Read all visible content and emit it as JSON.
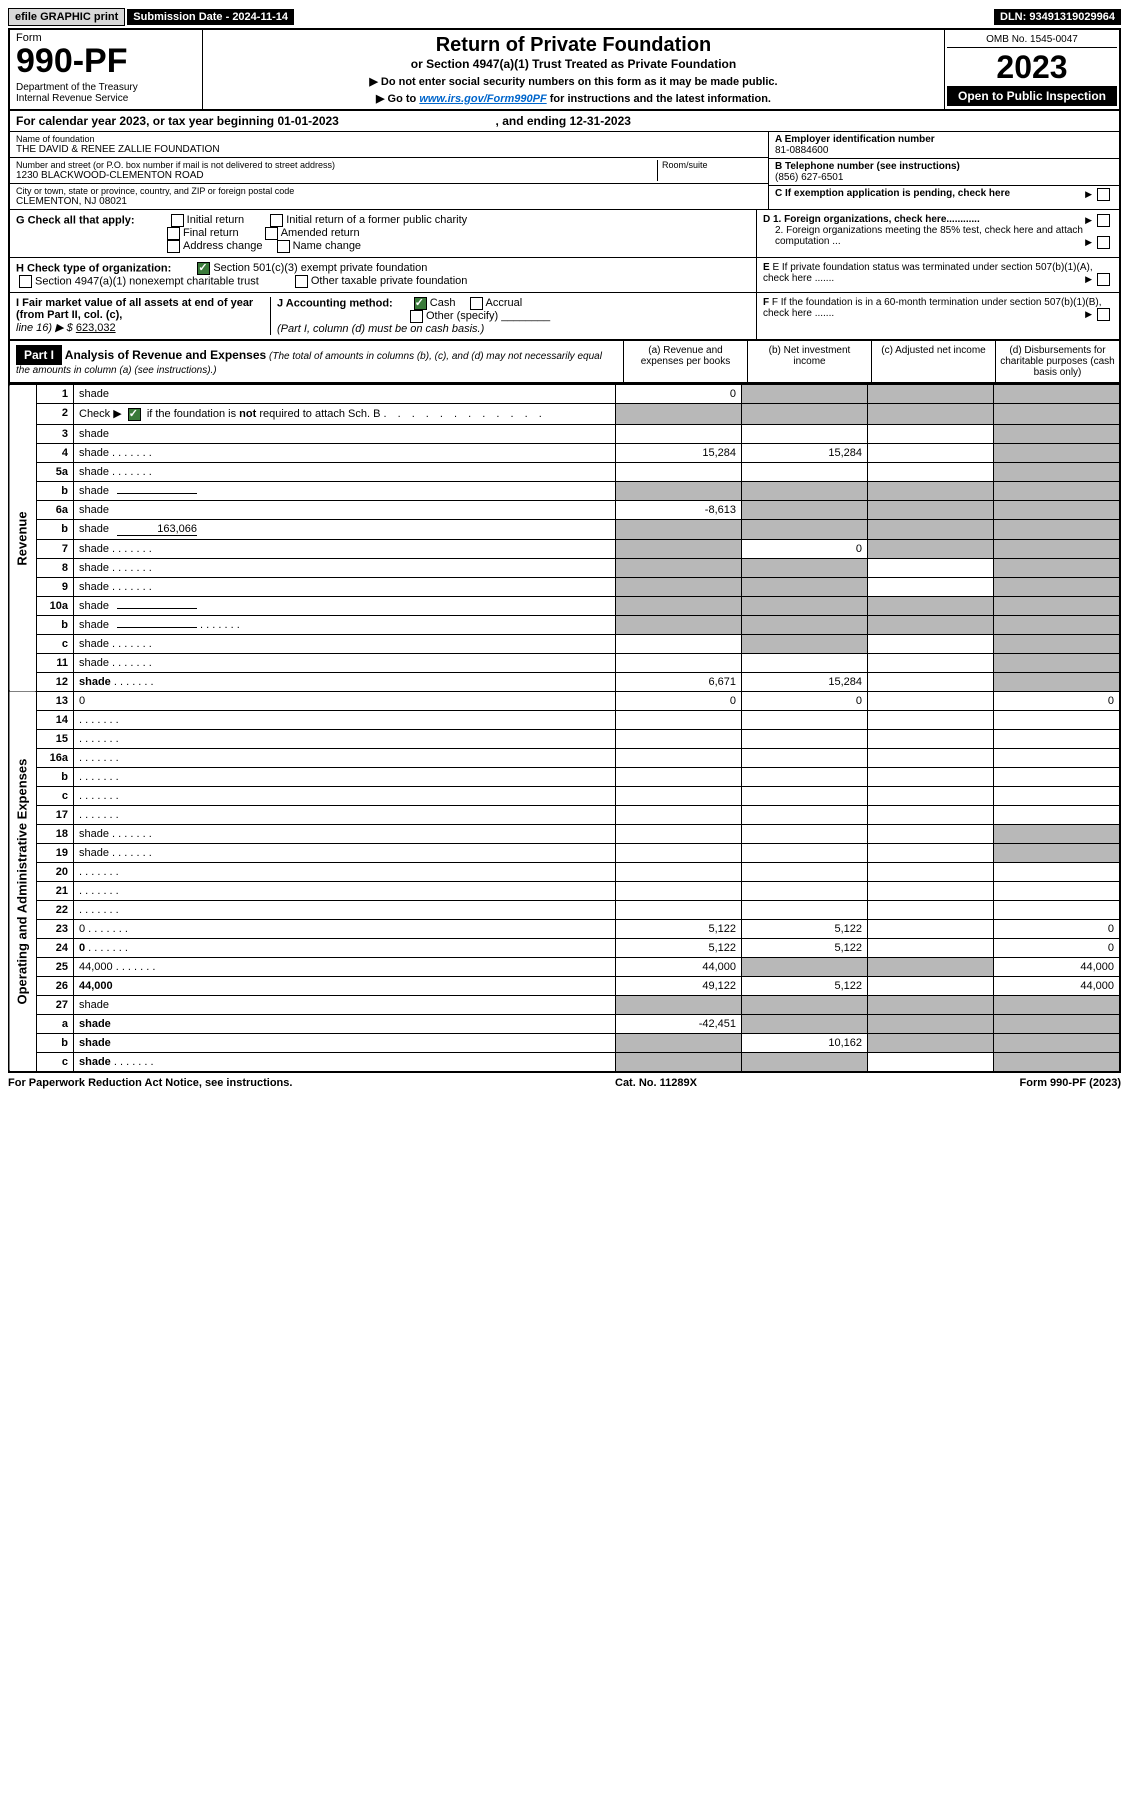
{
  "topbar": {
    "efile": "efile GRAPHIC print",
    "subdate_label": "Submission Date - 2024-11-14",
    "dln": "DLN: 93491319029964"
  },
  "header": {
    "form_label": "Form",
    "form_num": "990-PF",
    "dept": "Department of the Treasury\nInternal Revenue Service",
    "title": "Return of Private Foundation",
    "sub1": "or Section 4947(a)(1) Trust Treated as Private Foundation",
    "sub2a": "▶ Do not enter social security numbers on this form as it may be made public.",
    "sub2b_pre": "▶ Go to ",
    "sub2b_link": "www.irs.gov/Form990PF",
    "sub2b_post": " for instructions and the latest information.",
    "omb": "OMB No. 1545-0047",
    "year": "2023",
    "inspect": "Open to Public Inspection"
  },
  "calyear": {
    "pre": "For calendar year 2023, or tax year beginning ",
    "begin": "01-01-2023",
    "mid": " , and ending ",
    "end": "12-31-2023"
  },
  "entity": {
    "name_label": "Name of foundation",
    "name": "THE DAVID & RENEE ZALLIE FOUNDATION",
    "addr_label": "Number and street (or P.O. box number if mail is not delivered to street address)",
    "addr": "1230 BLACKWOOD-CLEMENTON ROAD",
    "room_label": "Room/suite",
    "city_label": "City or town, state or province, country, and ZIP or foreign postal code",
    "city": "CLEMENTON, NJ  08021",
    "ein_label": "A Employer identification number",
    "ein": "81-0884600",
    "phone_label": "B Telephone number (see instructions)",
    "phone": "(856) 627-6501",
    "c_label": "C If exemption application is pending, check here"
  },
  "g": {
    "label": "G Check all that apply:",
    "opts": [
      "Initial return",
      "Initial return of a former public charity",
      "Final return",
      "Amended return",
      "Address change",
      "Name change"
    ]
  },
  "d": {
    "d1": "D 1. Foreign organizations, check here............",
    "d2": "2. Foreign organizations meeting the 85% test, check here and attach computation ..."
  },
  "h": {
    "label": "H Check type of organization:",
    "opt1": "Section 501(c)(3) exempt private foundation",
    "opt2": "Section 4947(a)(1) nonexempt charitable trust",
    "opt3": "Other taxable private foundation"
  },
  "e": {
    "text": "E If private foundation status was terminated under section 507(b)(1)(A), check here ......."
  },
  "i": {
    "label": "I Fair market value of all assets at end of year (from Part II, col. (c),",
    "line": "line 16) ▶ $",
    "val": "623,032"
  },
  "j": {
    "label": "J Accounting method:",
    "cash": "Cash",
    "accrual": "Accrual",
    "other": "Other (specify)",
    "note": "(Part I, column (d) must be on cash basis.)"
  },
  "f": {
    "text": "F If the foundation is in a 60-month termination under section 507(b)(1)(B), check here ......."
  },
  "part1": {
    "label": "Part I",
    "title": "Analysis of Revenue and Expenses",
    "note": "(The total of amounts in columns (b), (c), and (d) may not necessarily equal the amounts in column (a) (see instructions).)",
    "cola": "(a) Revenue and expenses per books",
    "colb": "(b) Net investment income",
    "colc": "(c) Adjusted net income",
    "cold": "(d) Disbursements for charitable purposes (cash basis only)"
  },
  "sections": {
    "revenue": "Revenue",
    "expenses": "Operating and Administrative Expenses"
  },
  "rows": [
    {
      "n": "1",
      "d": "shade",
      "a": "0",
      "b": "shade",
      "c": "shade"
    },
    {
      "n": "2",
      "d": "shade",
      "dots": true,
      "a": "shade",
      "b": "shade",
      "c": "shade"
    },
    {
      "n": "3",
      "d": "shade",
      "a": "",
      "b": "",
      "c": ""
    },
    {
      "n": "4",
      "d": "shade",
      "dots": true,
      "a": "15,284",
      "b": "15,284",
      "c": ""
    },
    {
      "n": "5a",
      "d": "shade",
      "dots": true,
      "a": "",
      "b": "",
      "c": ""
    },
    {
      "n": "b",
      "d": "shade",
      "inline": "",
      "a": "shade",
      "b": "shade",
      "c": "shade"
    },
    {
      "n": "6a",
      "d": "shade",
      "a": "-8,613",
      "b": "shade",
      "c": "shade"
    },
    {
      "n": "b",
      "d": "shade",
      "inline": "163,066",
      "a": "shade",
      "b": "shade",
      "c": "shade"
    },
    {
      "n": "7",
      "d": "shade",
      "dots": true,
      "a": "shade",
      "b": "0",
      "c": "shade"
    },
    {
      "n": "8",
      "d": "shade",
      "dots": true,
      "a": "shade",
      "b": "shade",
      "c": ""
    },
    {
      "n": "9",
      "d": "shade",
      "dots": true,
      "a": "shade",
      "b": "shade",
      "c": ""
    },
    {
      "n": "10a",
      "d": "shade",
      "inline": "",
      "a": "shade",
      "b": "shade",
      "c": "shade"
    },
    {
      "n": "b",
      "d": "shade",
      "dots": true,
      "inline": "",
      "a": "shade",
      "b": "shade",
      "c": "shade"
    },
    {
      "n": "c",
      "d": "shade",
      "dots": true,
      "a": "",
      "b": "shade",
      "c": ""
    },
    {
      "n": "11",
      "d": "shade",
      "dots": true,
      "a": "",
      "b": "",
      "c": ""
    },
    {
      "n": "12",
      "d": "shade",
      "dots": true,
      "bold": true,
      "a": "6,671",
      "b": "15,284",
      "c": ""
    },
    {
      "n": "13",
      "d": "0",
      "a": "0",
      "b": "0",
      "c": ""
    },
    {
      "n": "14",
      "d": "",
      "dots": true,
      "a": "",
      "b": "",
      "c": ""
    },
    {
      "n": "15",
      "d": "",
      "dots": true,
      "a": "",
      "b": "",
      "c": ""
    },
    {
      "n": "16a",
      "d": "",
      "dots": true,
      "a": "",
      "b": "",
      "c": ""
    },
    {
      "n": "b",
      "d": "",
      "dots": true,
      "a": "",
      "b": "",
      "c": ""
    },
    {
      "n": "c",
      "d": "",
      "dots": true,
      "a": "",
      "b": "",
      "c": ""
    },
    {
      "n": "17",
      "d": "",
      "dots": true,
      "a": "",
      "b": "",
      "c": ""
    },
    {
      "n": "18",
      "d": "shade",
      "dots": true,
      "a": "",
      "b": "",
      "c": ""
    },
    {
      "n": "19",
      "d": "shade",
      "dots": true,
      "a": "",
      "b": "",
      "c": ""
    },
    {
      "n": "20",
      "d": "",
      "dots": true,
      "a": "",
      "b": "",
      "c": ""
    },
    {
      "n": "21",
      "d": "",
      "dots": true,
      "a": "",
      "b": "",
      "c": ""
    },
    {
      "n": "22",
      "d": "",
      "dots": true,
      "a": "",
      "b": "",
      "c": ""
    },
    {
      "n": "23",
      "d": "0",
      "dots": true,
      "a": "5,122",
      "b": "5,122",
      "c": ""
    },
    {
      "n": "24",
      "d": "0",
      "dots": true,
      "bold": true,
      "a": "5,122",
      "b": "5,122",
      "c": ""
    },
    {
      "n": "25",
      "d": "44,000",
      "dots": true,
      "a": "44,000",
      "b": "shade",
      "c": "shade"
    },
    {
      "n": "26",
      "d": "44,000",
      "bold": true,
      "a": "49,122",
      "b": "5,122",
      "c": ""
    },
    {
      "n": "27",
      "d": "shade",
      "a": "shade",
      "b": "shade",
      "c": "shade"
    },
    {
      "n": "a",
      "d": "shade",
      "bold": true,
      "a": "-42,451",
      "b": "shade",
      "c": "shade"
    },
    {
      "n": "b",
      "d": "shade",
      "bold": true,
      "a": "shade",
      "b": "10,162",
      "c": "shade"
    },
    {
      "n": "c",
      "d": "shade",
      "dots": true,
      "bold": true,
      "a": "shade",
      "b": "shade",
      "c": ""
    }
  ],
  "footer": {
    "left": "For Paperwork Reduction Act Notice, see instructions.",
    "mid": "Cat. No. 11289X",
    "right": "Form 990-PF (2023)"
  }
}
